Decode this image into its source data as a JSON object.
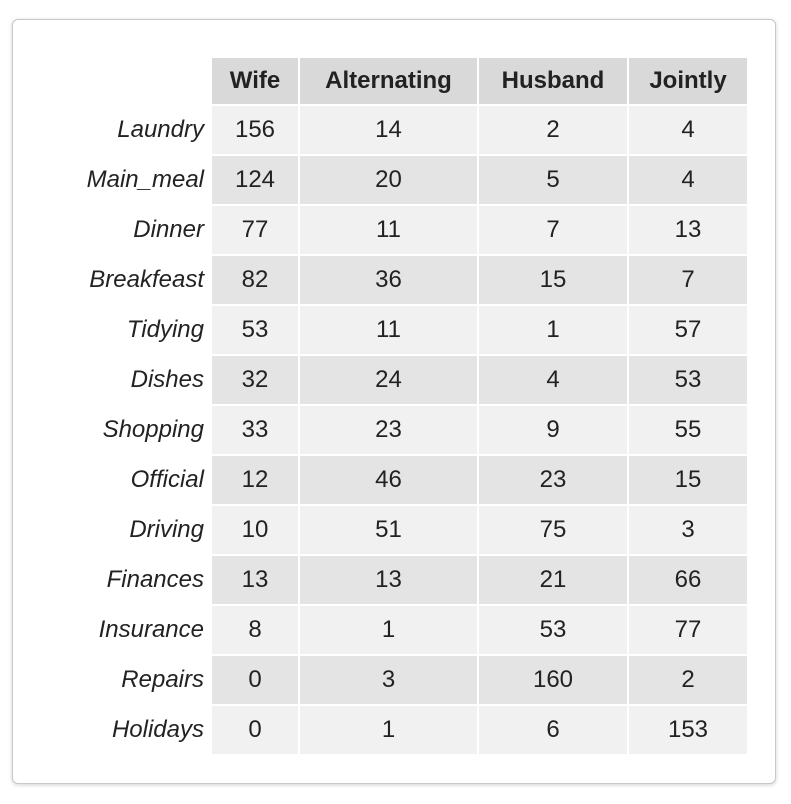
{
  "chart_data": {
    "type": "table",
    "columns": [
      "Wife",
      "Alternating",
      "Husband",
      "Jointly"
    ],
    "rows": [
      {
        "label": "Laundry",
        "values": [
          156,
          14,
          2,
          4
        ]
      },
      {
        "label": "Main_meal",
        "values": [
          124,
          20,
          5,
          4
        ]
      },
      {
        "label": "Dinner",
        "values": [
          77,
          11,
          7,
          13
        ]
      },
      {
        "label": "Breakfeast",
        "values": [
          82,
          36,
          15,
          7
        ]
      },
      {
        "label": "Tidying",
        "values": [
          53,
          11,
          1,
          57
        ]
      },
      {
        "label": "Dishes",
        "values": [
          32,
          24,
          4,
          53
        ]
      },
      {
        "label": "Shopping",
        "values": [
          33,
          23,
          9,
          55
        ]
      },
      {
        "label": "Official",
        "values": [
          12,
          46,
          23,
          15
        ]
      },
      {
        "label": "Driving",
        "values": [
          10,
          51,
          75,
          3
        ]
      },
      {
        "label": "Finances",
        "values": [
          13,
          13,
          21,
          66
        ]
      },
      {
        "label": "Insurance",
        "values": [
          8,
          1,
          53,
          77
        ]
      },
      {
        "label": "Repairs",
        "values": [
          0,
          3,
          160,
          2
        ]
      },
      {
        "label": "Holidays",
        "values": [
          0,
          1,
          6,
          153
        ]
      }
    ]
  },
  "colors": {
    "header_bg": "#d9d9d9",
    "row_light": "#f1f1f1",
    "row_dark": "#e4e4e4",
    "text": "#222222",
    "card_border": "#c8c8c8"
  }
}
